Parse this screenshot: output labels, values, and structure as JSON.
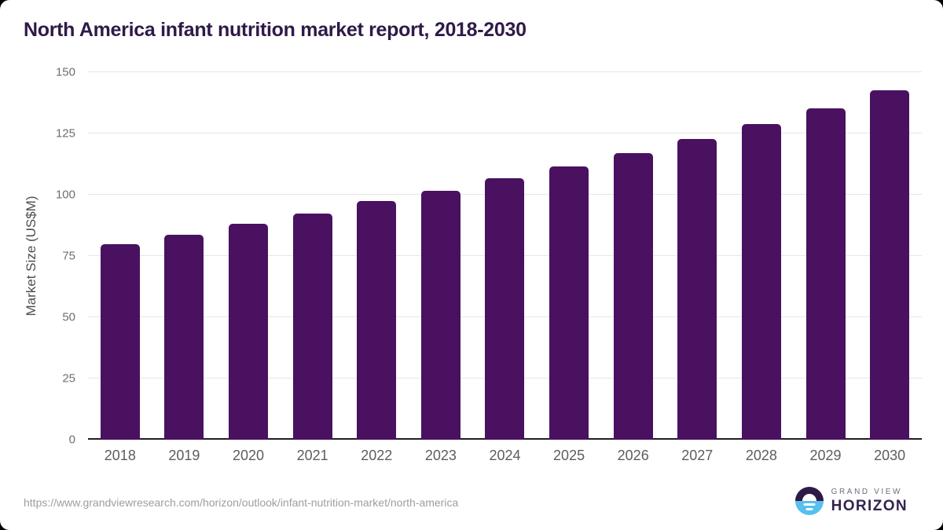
{
  "title": "North America infant nutrition market report, 2018-2030",
  "chart_data": {
    "type": "bar",
    "title": "North America infant nutrition market report, 2018-2030",
    "categories": [
      "2018",
      "2019",
      "2020",
      "2021",
      "2022",
      "2023",
      "2024",
      "2025",
      "2026",
      "2027",
      "2028",
      "2029",
      "2030"
    ],
    "values": [
      79.7,
      83.7,
      88.1,
      92.4,
      97.3,
      101.6,
      106.6,
      111.7,
      117.1,
      122.9,
      129.0,
      135.4,
      142.6
    ],
    "xlabel": "",
    "ylabel": "Market Size (US$M)",
    "ylim": [
      0,
      150
    ],
    "yticks": [
      0,
      25,
      50,
      75,
      100,
      125,
      150
    ],
    "grid": "horizontal-light",
    "legend": "none",
    "bar_color": "#491160"
  },
  "colors": {
    "title_text": "#2e1a47",
    "bar": "#491160",
    "gridline": "#e6e6e6",
    "axis_line": "#1f1f1f",
    "y_tick_text": "#6e6e6e",
    "x_tick_text": "#5d5d5d",
    "source_text": "#9e9e9e",
    "logo_purple": "#2e1a47",
    "logo_blue": "#56c0ee"
  },
  "footer": {
    "source_url": "https://www.grandviewresearch.com/horizon/outlook/infant-nutrition-market/north-america",
    "logo": {
      "top_text": "GRAND VIEW",
      "bottom_text": "HORIZON"
    }
  }
}
